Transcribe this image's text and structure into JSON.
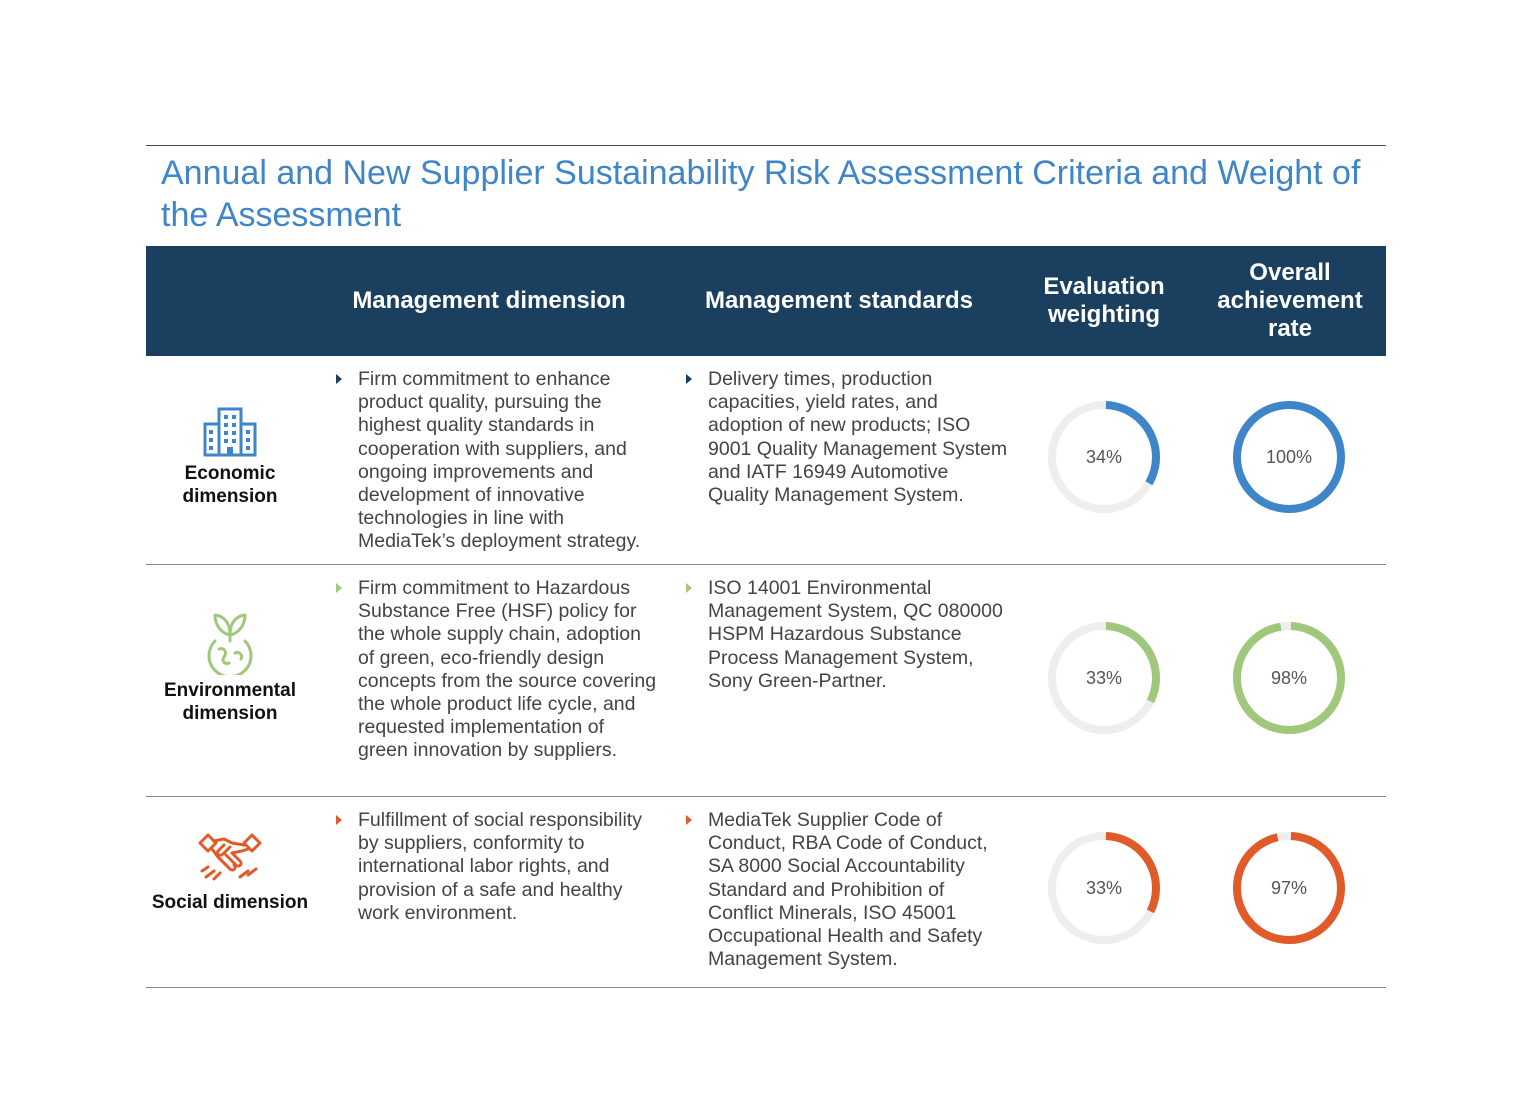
{
  "title": "Annual and New Supplier Sustainability Risk Assessment Criteria and Weight of the Assessment",
  "header": {
    "management_dimension": "Management dimension",
    "management_standards": "Management standards",
    "evaluation_weighting": "Evaluation weighting",
    "overall_achievement_rate": "Overall achievement rate"
  },
  "colors": {
    "header_bg": "#1b3f5f",
    "title": "#3f86c8",
    "track": "#eeeeee"
  },
  "rows": [
    {
      "dimension": "Economic dimension",
      "icon": "building-icon",
      "color": "#3f86c8",
      "management_dimension": "Firm commitment to enhance product quality, pursuing the highest quality standards in cooperation with suppliers, and ongoing improvements and development of innovative technologies in line with MediaTek’s deployment strategy.",
      "management_standards": "Delivery times, production capacities, yield rates, and adoption of new products; ISO 9001 Quality Management System and IATF 16949 Automotive Quality Management System.",
      "weighting_label": "34%",
      "weighting_value": 34,
      "achievement_label": "100%",
      "achievement_value": 100
    },
    {
      "dimension": "Environmental dimension",
      "icon": "earth-sprout-icon",
      "color": "#9fc87a",
      "management_dimension": "Firm commitment to Hazardous Substance Free (HSF) policy for the whole supply chain, adoption of green, eco-friendly design concepts from the source covering the whole product life cycle, and requested implementation of green innovation by suppliers.",
      "management_standards": "ISO 14001 Environmental Management System, QC 080000 HSPM Hazardous Substance Process Management System, Sony Green-Partner.",
      "weighting_label": "33%",
      "weighting_value": 33,
      "achievement_label": "98%",
      "achievement_value": 98
    },
    {
      "dimension": "Social dimension",
      "icon": "handshake-icon",
      "color": "#e05a2a",
      "management_dimension": "Fulfillment of social responsibility by suppliers, conformity to international labor rights, and provision of a safe and healthy work environment.",
      "management_standards": "MediaTek Supplier Code of Conduct, RBA Code of Conduct, SA 8000 Social Accountability Standard and Prohibition of Conflict Minerals, ISO 45001 Occupational Health and Safety Management System.",
      "weighting_label": "33%",
      "weighting_value": 33,
      "achievement_label": "97%",
      "achievement_value": 97
    }
  ]
}
